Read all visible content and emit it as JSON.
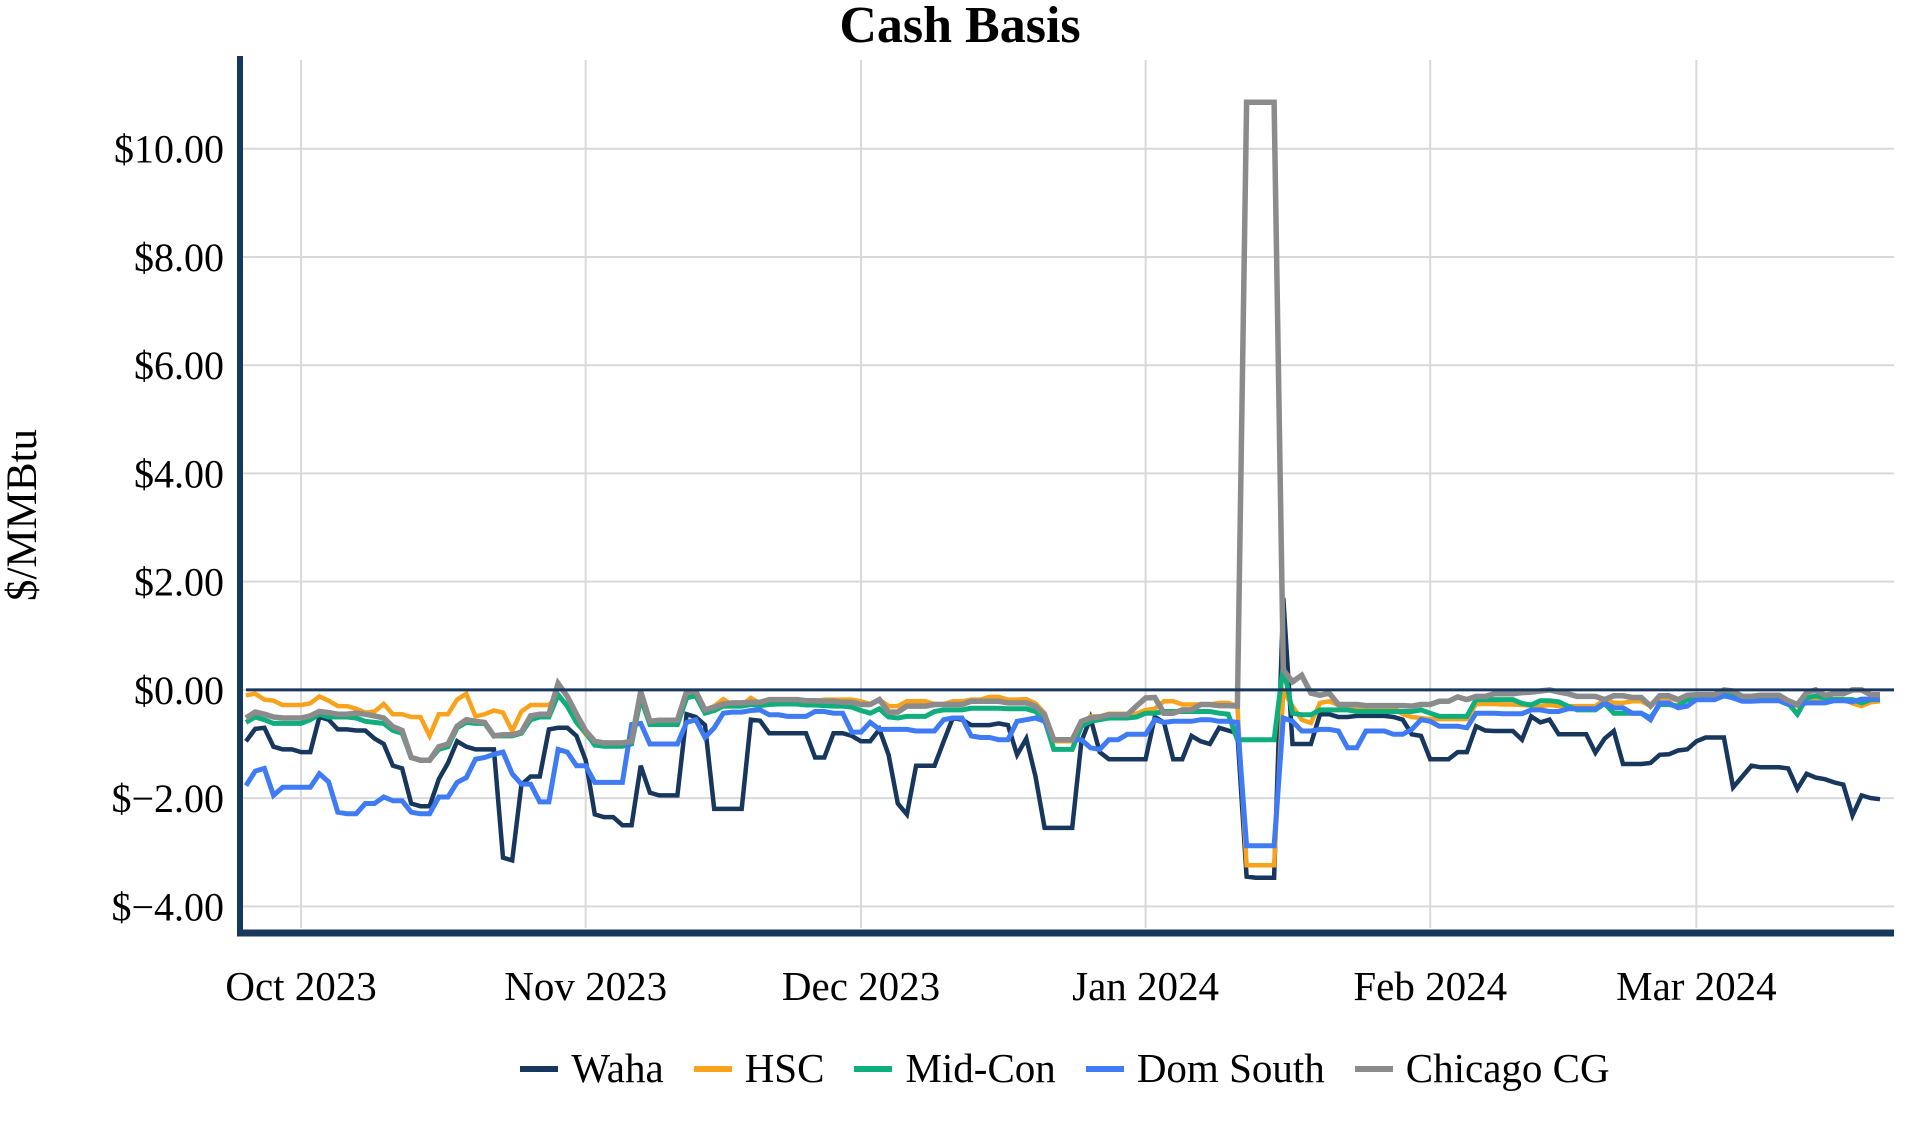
{
  "title": "Cash Basis",
  "y_axis": {
    "label": "$/MMBtu",
    "ticks": [
      {
        "label": "$10.00",
        "value": 10
      },
      {
        "label": "$8.00",
        "value": 8
      },
      {
        "label": "$6.00",
        "value": 6
      },
      {
        "label": "$4.00",
        "value": 4
      },
      {
        "label": "$2.00",
        "value": 2
      },
      {
        "label": "$0.00",
        "value": 0
      },
      {
        "label": "$−2.00",
        "value": -2
      },
      {
        "label": "$−4.00",
        "value": -4
      }
    ]
  },
  "x_axis": {
    "ticks": [
      {
        "label": "Oct 2023",
        "index": 6
      },
      {
        "label": "Nov 2023",
        "index": 37
      },
      {
        "label": "Dec 2023",
        "index": 67
      },
      {
        "label": "Jan 2024",
        "index": 98
      },
      {
        "label": "Feb 2024",
        "index": 129
      },
      {
        "label": "Mar 2024",
        "index": 158
      }
    ]
  },
  "legend": [
    "Waha",
    "HSC",
    "Mid-Con",
    "Dom South",
    "Chicago CG"
  ],
  "colors": {
    "axis": "#17375E",
    "zero_line": "#17375E",
    "grid": "#D9D9D9",
    "background": "#FFFFFF"
  },
  "chart_data": {
    "type": "line",
    "title": "Cash Basis",
    "xlabel": "",
    "ylabel": "$/MMBtu",
    "x_unit": "daily",
    "start_date": "2023-09-25",
    "end_date": "2024-03-21",
    "ylim": [
      -4.4,
      11.64
    ],
    "grid": true,
    "zero_line": true,
    "legend_position": "bottom",
    "series": [
      {
        "name": "Waha",
        "color": "#17375E",
        "width": 4.5,
        "values": [
          -0.95,
          -0.72,
          -0.7,
          -1.05,
          -1.1,
          -1.1,
          -1.15,
          -1.15,
          -0.5,
          -0.55,
          -0.73,
          -0.73,
          -0.75,
          -0.75,
          -0.9,
          -1.0,
          -1.4,
          -1.45,
          -2.1,
          -2.15,
          -2.15,
          -1.65,
          -1.35,
          -0.95,
          -1.05,
          -1.1,
          -1.1,
          -1.1,
          -3.1,
          -3.15,
          -1.75,
          -1.6,
          -1.6,
          -0.73,
          -0.7,
          -0.7,
          -0.85,
          -1.3,
          -2.3,
          -2.35,
          -2.35,
          -2.5,
          -2.5,
          -1.4,
          -1.9,
          -1.95,
          -1.95,
          -1.95,
          -0.45,
          -0.5,
          -0.65,
          -2.2,
          -2.2,
          -2.2,
          -2.2,
          -0.55,
          -0.57,
          -0.8,
          -0.8,
          -0.8,
          -0.8,
          -0.8,
          -1.25,
          -1.25,
          -0.8,
          -0.8,
          -0.85,
          -0.95,
          -0.95,
          -0.73,
          -1.2,
          -2.1,
          -2.3,
          -1.4,
          -1.4,
          -1.4,
          -0.95,
          -0.52,
          -0.55,
          -0.65,
          -0.65,
          -0.65,
          -0.62,
          -0.65,
          -1.2,
          -0.9,
          -1.6,
          -2.55,
          -2.55,
          -2.55,
          -2.55,
          -0.95,
          -0.52,
          -1.15,
          -1.28,
          -1.28,
          -1.28,
          -1.28,
          -1.28,
          -0.5,
          -0.6,
          -1.28,
          -1.28,
          -0.85,
          -0.95,
          -1.0,
          -0.7,
          -0.75,
          -0.8,
          -3.45,
          -3.47,
          -3.47,
          -3.47,
          1.7,
          -1.0,
          -1.0,
          -1.0,
          -0.45,
          -0.45,
          -0.5,
          -0.5,
          -0.48,
          -0.48,
          -0.48,
          -0.48,
          -0.5,
          -0.55,
          -0.82,
          -0.85,
          -1.28,
          -1.28,
          -1.28,
          -1.15,
          -1.15,
          -0.67,
          -0.75,
          -0.76,
          -0.76,
          -0.76,
          -0.92,
          -0.49,
          -0.6,
          -0.55,
          -0.82,
          -0.82,
          -0.82,
          -0.82,
          -1.16,
          -0.9,
          -0.76,
          -1.37,
          -1.37,
          -1.37,
          -1.35,
          -1.2,
          -1.19,
          -1.12,
          -1.1,
          -0.95,
          -0.88,
          -0.88,
          -0.88,
          -1.8,
          -1.6,
          -1.4,
          -1.43,
          -1.43,
          -1.43,
          -1.45,
          -1.83,
          -1.55,
          -1.62,
          -1.65,
          -1.71,
          -1.75,
          -2.32,
          -1.95,
          -2.0,
          -2.02
        ]
      },
      {
        "name": "HSC",
        "color": "#F9A21B",
        "width": 4.5,
        "values": [
          -0.1,
          -0.07,
          -0.18,
          -0.2,
          -0.28,
          -0.28,
          -0.28,
          -0.25,
          -0.12,
          -0.2,
          -0.3,
          -0.3,
          -0.35,
          -0.42,
          -0.4,
          -0.26,
          -0.45,
          -0.45,
          -0.5,
          -0.5,
          -0.85,
          -0.45,
          -0.45,
          -0.18,
          -0.07,
          -0.49,
          -0.45,
          -0.38,
          -0.42,
          -0.76,
          -0.4,
          -0.28,
          -0.28,
          -0.28,
          -0.1,
          -0.3,
          -0.6,
          -0.82,
          -1.0,
          -1.04,
          -1.04,
          -1.04,
          -1.0,
          -0.05,
          -0.58,
          -0.58,
          -0.58,
          -0.58,
          -0.1,
          -0.05,
          -0.37,
          -0.3,
          -0.17,
          -0.28,
          -0.28,
          -0.15,
          -0.25,
          -0.18,
          -0.21,
          -0.21,
          -0.21,
          -0.21,
          -0.21,
          -0.18,
          -0.18,
          -0.18,
          -0.18,
          -0.21,
          -0.26,
          -0.18,
          -0.3,
          -0.3,
          -0.21,
          -0.21,
          -0.21,
          -0.26,
          -0.26,
          -0.21,
          -0.21,
          -0.18,
          -0.18,
          -0.13,
          -0.13,
          -0.18,
          -0.18,
          -0.17,
          -0.25,
          -0.43,
          -0.95,
          -0.95,
          -0.95,
          -0.67,
          -0.49,
          -0.49,
          -0.44,
          -0.44,
          -0.44,
          -0.44,
          -0.37,
          -0.35,
          -0.21,
          -0.21,
          -0.27,
          -0.27,
          -0.27,
          -0.27,
          -0.24,
          -0.24,
          -0.3,
          -3.24,
          -3.24,
          -3.24,
          -3.24,
          -0.02,
          -0.3,
          -0.55,
          -0.61,
          -0.24,
          -0.21,
          -0.28,
          -0.3,
          -0.33,
          -0.33,
          -0.33,
          -0.33,
          -0.33,
          -0.45,
          -0.5,
          -0.52,
          -0.54,
          -0.54,
          -0.54,
          -0.54,
          -0.54,
          -0.26,
          -0.26,
          -0.26,
          -0.27,
          -0.27,
          -0.28,
          -0.29,
          -0.3,
          -0.28,
          -0.3,
          -0.3,
          -0.3,
          -0.3,
          -0.3,
          -0.18,
          -0.24,
          -0.24,
          -0.21,
          -0.21,
          -0.3,
          -0.15,
          -0.15,
          -0.2,
          -0.12,
          -0.15,
          -0.15,
          -0.15,
          -0.03,
          -0.05,
          -0.17,
          -0.17,
          -0.15,
          -0.15,
          -0.15,
          -0.22,
          -0.3,
          -0.18,
          -0.18,
          -0.18,
          -0.17,
          -0.17,
          -0.25,
          -0.3,
          -0.23,
          -0.21
        ]
      },
      {
        "name": "Mid-Con",
        "color": "#0FAF7D",
        "width": 5,
        "values": [
          -0.6,
          -0.5,
          -0.55,
          -0.62,
          -0.62,
          -0.62,
          -0.62,
          -0.55,
          -0.45,
          -0.5,
          -0.5,
          -0.5,
          -0.52,
          -0.58,
          -0.6,
          -0.62,
          -0.75,
          -0.8,
          -1.25,
          -1.3,
          -1.3,
          -1.1,
          -1.05,
          -0.7,
          -0.6,
          -0.62,
          -0.62,
          -0.85,
          -0.85,
          -0.85,
          -0.8,
          -0.55,
          -0.5,
          -0.5,
          -0.09,
          -0.3,
          -0.6,
          -0.79,
          -1.02,
          -1.04,
          -1.04,
          -1.04,
          -1.0,
          -0.15,
          -0.64,
          -0.64,
          -0.64,
          -0.64,
          -0.15,
          -0.11,
          -0.43,
          -0.38,
          -0.3,
          -0.3,
          -0.3,
          -0.27,
          -0.29,
          -0.27,
          -0.26,
          -0.26,
          -0.26,
          -0.28,
          -0.28,
          -0.29,
          -0.3,
          -0.3,
          -0.32,
          -0.38,
          -0.43,
          -0.35,
          -0.5,
          -0.52,
          -0.49,
          -0.49,
          -0.49,
          -0.4,
          -0.37,
          -0.37,
          -0.37,
          -0.34,
          -0.34,
          -0.34,
          -0.34,
          -0.35,
          -0.35,
          -0.35,
          -0.4,
          -0.55,
          -1.1,
          -1.1,
          -1.1,
          -0.67,
          -0.58,
          -0.55,
          -0.52,
          -0.52,
          -0.52,
          -0.5,
          -0.43,
          -0.43,
          -0.4,
          -0.4,
          -0.4,
          -0.4,
          -0.4,
          -0.4,
          -0.43,
          -0.45,
          -0.92,
          -0.92,
          -0.92,
          -0.92,
          -0.92,
          0.44,
          -0.43,
          -0.46,
          -0.46,
          -0.37,
          -0.37,
          -0.37,
          -0.37,
          -0.4,
          -0.4,
          -0.4,
          -0.4,
          -0.4,
          -0.4,
          -0.4,
          -0.37,
          -0.43,
          -0.49,
          -0.49,
          -0.49,
          -0.49,
          -0.18,
          -0.18,
          -0.18,
          -0.18,
          -0.18,
          -0.25,
          -0.28,
          -0.2,
          -0.2,
          -0.22,
          -0.3,
          -0.37,
          -0.37,
          -0.37,
          -0.25,
          -0.43,
          -0.43,
          -0.43,
          -0.43,
          -0.52,
          -0.27,
          -0.27,
          -0.3,
          -0.18,
          -0.18,
          -0.18,
          -0.18,
          -0.07,
          -0.08,
          -0.18,
          -0.18,
          -0.18,
          -0.18,
          -0.18,
          -0.25,
          -0.45,
          -0.15,
          -0.11,
          -0.15,
          -0.18,
          -0.18,
          -0.18,
          -0.24,
          -0.18,
          -0.18
        ]
      },
      {
        "name": "Dom South",
        "color": "#3E7BF5",
        "width": 5,
        "values": [
          -1.77,
          -1.5,
          -1.45,
          -1.95,
          -1.8,
          -1.8,
          -1.8,
          -1.8,
          -1.55,
          -1.7,
          -2.26,
          -2.29,
          -2.29,
          -2.1,
          -2.1,
          -1.98,
          -2.05,
          -2.05,
          -2.26,
          -2.29,
          -2.29,
          -1.98,
          -1.98,
          -1.71,
          -1.62,
          -1.28,
          -1.25,
          -1.19,
          -1.15,
          -1.55,
          -1.74,
          -1.74,
          -2.07,
          -2.07,
          -1.1,
          -1.15,
          -1.4,
          -1.4,
          -1.71,
          -1.71,
          -1.71,
          -1.71,
          -0.64,
          -0.62,
          -1.0,
          -1.0,
          -1.0,
          -1.0,
          -0.6,
          -0.55,
          -0.88,
          -0.7,
          -0.43,
          -0.41,
          -0.41,
          -0.38,
          -0.37,
          -0.46,
          -0.46,
          -0.49,
          -0.49,
          -0.49,
          -0.4,
          -0.4,
          -0.43,
          -0.43,
          -0.78,
          -0.78,
          -0.6,
          -0.73,
          -0.73,
          -0.73,
          -0.73,
          -0.76,
          -0.76,
          -0.76,
          -0.55,
          -0.52,
          -0.52,
          -0.85,
          -0.88,
          -0.88,
          -0.92,
          -0.92,
          -0.58,
          -0.55,
          -0.52,
          -0.58,
          -0.92,
          -0.92,
          -0.92,
          -0.92,
          -1.07,
          -1.1,
          -0.92,
          -0.92,
          -0.82,
          -0.82,
          -0.82,
          -0.55,
          -0.6,
          -0.58,
          -0.58,
          -0.58,
          -0.55,
          -0.55,
          -0.58,
          -0.58,
          -0.6,
          -2.88,
          -2.88,
          -2.88,
          -2.88,
          -0.52,
          -0.58,
          -0.76,
          -0.76,
          -0.73,
          -0.73,
          -0.76,
          -1.07,
          -1.07,
          -0.76,
          -0.76,
          -0.76,
          -0.82,
          -0.82,
          -0.73,
          -0.55,
          -0.58,
          -0.67,
          -0.67,
          -0.67,
          -0.7,
          -0.43,
          -0.43,
          -0.43,
          -0.44,
          -0.44,
          -0.44,
          -0.37,
          -0.37,
          -0.4,
          -0.4,
          -0.35,
          -0.35,
          -0.35,
          -0.35,
          -0.24,
          -0.33,
          -0.33,
          -0.43,
          -0.43,
          -0.55,
          -0.24,
          -0.24,
          -0.33,
          -0.3,
          -0.18,
          -0.18,
          -0.18,
          -0.11,
          -0.15,
          -0.21,
          -0.21,
          -0.2,
          -0.2,
          -0.2,
          -0.27,
          -0.27,
          -0.24,
          -0.24,
          -0.24,
          -0.2,
          -0.2,
          -0.22,
          -0.17,
          -0.17,
          -0.17
        ]
      },
      {
        "name": "Chicago CG",
        "color": "#8B8B8B",
        "width": 5.5,
        "values": [
          -0.52,
          -0.41,
          -0.45,
          -0.5,
          -0.52,
          -0.52,
          -0.52,
          -0.48,
          -0.4,
          -0.42,
          -0.45,
          -0.45,
          -0.43,
          -0.45,
          -0.48,
          -0.52,
          -0.68,
          -0.75,
          -1.25,
          -1.3,
          -1.3,
          -1.05,
          -1.0,
          -0.67,
          -0.55,
          -0.58,
          -0.6,
          -0.85,
          -0.83,
          -0.83,
          -0.78,
          -0.48,
          -0.45,
          -0.45,
          0.12,
          -0.12,
          -0.45,
          -0.76,
          -0.95,
          -0.98,
          -0.98,
          -0.98,
          -0.95,
          -0.03,
          -0.58,
          -0.56,
          -0.56,
          -0.56,
          -0.03,
          -0.03,
          -0.37,
          -0.32,
          -0.26,
          -0.24,
          -0.24,
          -0.23,
          -0.23,
          -0.18,
          -0.18,
          -0.18,
          -0.18,
          -0.2,
          -0.2,
          -0.21,
          -0.21,
          -0.23,
          -0.23,
          -0.27,
          -0.27,
          -0.18,
          -0.41,
          -0.41,
          -0.3,
          -0.3,
          -0.3,
          -0.27,
          -0.27,
          -0.27,
          -0.27,
          -0.21,
          -0.21,
          -0.21,
          -0.21,
          -0.24,
          -0.24,
          -0.24,
          -0.3,
          -0.46,
          -0.92,
          -0.92,
          -0.92,
          -0.58,
          -0.52,
          -0.5,
          -0.46,
          -0.46,
          -0.46,
          -0.3,
          -0.15,
          -0.14,
          -0.43,
          -0.43,
          -0.37,
          -0.37,
          -0.27,
          -0.27,
          -0.29,
          -0.29,
          -0.3,
          10.86,
          10.86,
          10.86,
          10.86,
          0.37,
          0.15,
          0.27,
          -0.06,
          -0.1,
          -0.06,
          -0.27,
          -0.27,
          -0.27,
          -0.29,
          -0.29,
          -0.29,
          -0.29,
          -0.29,
          -0.3,
          -0.27,
          -0.27,
          -0.21,
          -0.21,
          -0.13,
          -0.18,
          -0.12,
          -0.12,
          -0.07,
          -0.07,
          -0.07,
          -0.05,
          -0.04,
          -0.02,
          0.0,
          -0.04,
          -0.07,
          -0.12,
          -0.12,
          -0.12,
          -0.18,
          -0.11,
          -0.11,
          -0.14,
          -0.14,
          -0.3,
          -0.11,
          -0.11,
          -0.18,
          -0.1,
          -0.09,
          -0.09,
          -0.09,
          0.0,
          -0.02,
          -0.12,
          -0.12,
          -0.1,
          -0.1,
          -0.1,
          -0.2,
          -0.27,
          -0.05,
          0.0,
          -0.1,
          -0.07,
          -0.07,
          0.0,
          0.0,
          -0.09,
          -0.09
        ]
      }
    ]
  }
}
